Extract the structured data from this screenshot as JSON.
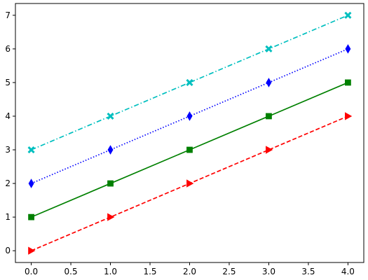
{
  "chart_data": {
    "type": "line",
    "title": "",
    "xlabel": "",
    "ylabel": "",
    "xlim": [
      -0.2,
      4.2
    ],
    "ylim": [
      -0.35,
      7.35
    ],
    "grid": false,
    "x": [
      0,
      1,
      2,
      3,
      4
    ],
    "x_ticks": [
      0.0,
      0.5,
      1.0,
      1.5,
      2.0,
      2.5,
      3.0,
      3.5,
      4.0
    ],
    "x_tick_labels": [
      "0.0",
      "0.5",
      "1.0",
      "1.5",
      "2.0",
      "2.5",
      "3.0",
      "3.5",
      "4.0"
    ],
    "y_ticks": [
      0,
      1,
      2,
      3,
      4,
      5,
      6,
      7
    ],
    "y_tick_labels": [
      "0",
      "1",
      "2",
      "3",
      "4",
      "5",
      "6",
      "7"
    ],
    "series": [
      {
        "values": [
          0,
          1,
          2,
          3,
          4
        ],
        "color": "#ff0000",
        "line_style": "dashed",
        "marker": "triangle-right"
      },
      {
        "values": [
          1,
          2,
          3,
          4,
          5
        ],
        "color": "#008000",
        "line_style": "solid",
        "marker": "square"
      },
      {
        "values": [
          2,
          3,
          4,
          5,
          6
        ],
        "color": "#0000ff",
        "line_style": "dotted",
        "marker": "thin-diamond"
      },
      {
        "values": [
          3,
          4,
          5,
          6,
          7
        ],
        "color": "#00bfbf",
        "line_style": "dash-dot",
        "marker": "x-filled"
      }
    ]
  }
}
